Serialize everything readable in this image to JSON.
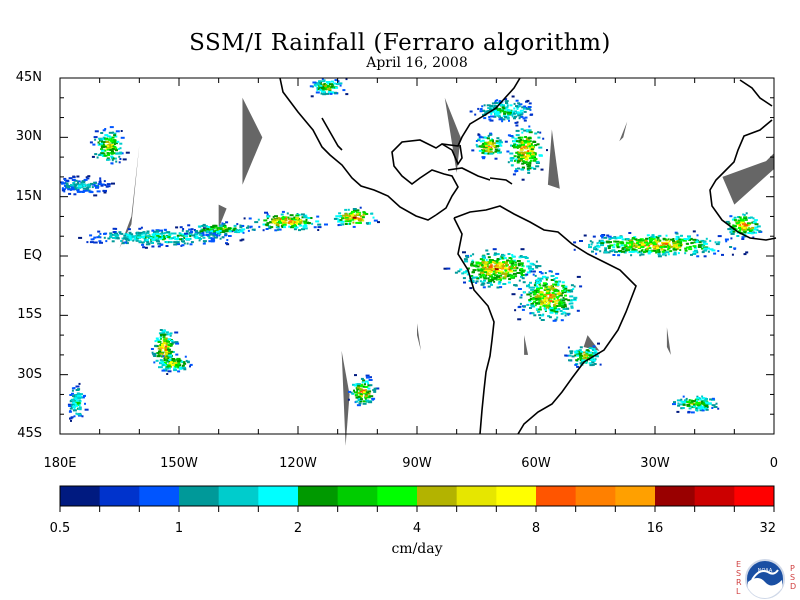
{
  "title": "SSM/I Rainfall (Ferraro algorithm)",
  "subtitle": "April 16, 2008",
  "map": {
    "projection": "cylindrical equidistant",
    "lon_range": [
      -180,
      0
    ],
    "lat_range": [
      -45,
      45
    ],
    "missing_data_color": "#666666",
    "coastline_color": "#000000"
  },
  "lat_ticks": [
    {
      "label": "45N",
      "value": 45
    },
    {
      "label": "30N",
      "value": 30
    },
    {
      "label": "15N",
      "value": 15
    },
    {
      "label": "EQ",
      "value": 0
    },
    {
      "label": "15S",
      "value": -15
    },
    {
      "label": "30S",
      "value": -30
    },
    {
      "label": "45S",
      "value": -45
    }
  ],
  "lon_ticks": [
    {
      "label": "180E",
      "value": -180
    },
    {
      "label": "150W",
      "value": -150
    },
    {
      "label": "120W",
      "value": -120
    },
    {
      "label": "90W",
      "value": -90
    },
    {
      "label": "60W",
      "value": -60
    },
    {
      "label": "30W",
      "value": -30
    },
    {
      "label": "0",
      "value": 0
    }
  ],
  "colorbar": {
    "unit": "cm/day",
    "labels": [
      "0.5",
      "1",
      "2",
      "4",
      "8",
      "16",
      "32"
    ],
    "colors": [
      "#001a80",
      "#0033cc",
      "#0055ff",
      "#009999",
      "#00cccc",
      "#00ffff",
      "#009900",
      "#00cc00",
      "#00ff00",
      "#b3b300",
      "#e6e600",
      "#ffff00",
      "#ff5500",
      "#ff8000",
      "#ffa000",
      "#990000",
      "#cc0000",
      "#ff0000"
    ]
  },
  "logo": {
    "name": "NOAA",
    "left_letters": "E S R L",
    "right_letters": "P S D"
  },
  "chart_data": {
    "type": "heatmap",
    "title": "SSM/I Rainfall (Ferraro algorithm)",
    "subtitle": "April 16, 2008",
    "xlabel": "",
    "ylabel": "",
    "colorbar_label": "cm/day",
    "xlim": [
      -180,
      0
    ],
    "ylim": [
      -45,
      45
    ],
    "missing_swaths": [
      {
        "lon": [
          -165,
          -162,
          -160,
          -162
        ],
        "lat": [
          2,
          8,
          28,
          10
        ]
      },
      {
        "lon": [
          -134,
          -129,
          -134
        ],
        "lat": [
          40,
          30,
          18
        ]
      },
      {
        "lon": [
          -140,
          -138,
          -140
        ],
        "lat": [
          13,
          12,
          7
        ]
      },
      {
        "lon": [
          -83,
          -79,
          -80
        ],
        "lat": [
          40,
          30,
          21
        ]
      },
      {
        "lon": [
          -56,
          -54,
          -57
        ],
        "lat": [
          32,
          17,
          18
        ]
      },
      {
        "lon": [
          -109,
          -107,
          -108
        ],
        "lat": [
          -24,
          -35,
          -48
        ]
      },
      {
        "lon": [
          -90,
          -89,
          -90
        ],
        "lat": [
          -17,
          -24,
          -20
        ]
      },
      {
        "lon": [
          -27,
          -26,
          -27
        ],
        "lat": [
          -18,
          -25,
          -23
        ]
      },
      {
        "lon": [
          -63,
          -62,
          -63
        ],
        "lat": [
          -20,
          -25,
          -25
        ]
      },
      {
        "lon": [
          -47,
          -44,
          -48
        ],
        "lat": [
          -20,
          -24,
          -23
        ]
      },
      {
        "lon": [
          -37,
          -38,
          -39
        ],
        "lat": [
          34,
          30,
          29
        ]
      },
      {
        "lon": [
          -2,
          0,
          0,
          -10,
          -13
        ],
        "lat": [
          24,
          26,
          22,
          13,
          20
        ]
      }
    ],
    "rain_clusters": [
      {
        "lon": -168,
        "lat": 28,
        "max": 12,
        "spread_lon": 5,
        "spread_lat": 6
      },
      {
        "lon": -175,
        "lat": 18,
        "max": 2,
        "spread_lon": 10,
        "spread_lat": 3
      },
      {
        "lon": -155,
        "lat": 5,
        "max": 4,
        "spread_lon": 25,
        "spread_lat": 3
      },
      {
        "lon": -123,
        "lat": 9,
        "max": 20,
        "spread_lon": 12,
        "spread_lat": 3
      },
      {
        "lon": -106,
        "lat": 10,
        "max": 32,
        "spread_lon": 7,
        "spread_lat": 3
      },
      {
        "lon": -140,
        "lat": 7,
        "max": 8,
        "spread_lon": 12,
        "spread_lat": 2
      },
      {
        "lon": -113,
        "lat": 43,
        "max": 8,
        "spread_lon": 6,
        "spread_lat": 3
      },
      {
        "lon": -72,
        "lat": 28,
        "max": 16,
        "spread_lon": 5,
        "spread_lat": 4
      },
      {
        "lon": -63,
        "lat": 27,
        "max": 20,
        "spread_lon": 6,
        "spread_lat": 8
      },
      {
        "lon": -68,
        "lat": 37,
        "max": 4,
        "spread_lon": 10,
        "spread_lat": 4
      },
      {
        "lon": -70,
        "lat": -3,
        "max": 20,
        "spread_lon": 14,
        "spread_lat": 6
      },
      {
        "lon": -57,
        "lat": -10,
        "max": 16,
        "spread_lon": 10,
        "spread_lat": 8
      },
      {
        "lon": -30,
        "lat": 3,
        "max": 16,
        "spread_lon": 25,
        "spread_lat": 4
      },
      {
        "lon": -8,
        "lat": 8,
        "max": 20,
        "spread_lon": 6,
        "spread_lat": 4
      },
      {
        "lon": -154,
        "lat": -23,
        "max": 16,
        "spread_lon": 4,
        "spread_lat": 7
      },
      {
        "lon": -152,
        "lat": -27,
        "max": 12,
        "spread_lon": 6,
        "spread_lat": 3
      },
      {
        "lon": -104,
        "lat": -34,
        "max": 16,
        "spread_lon": 4,
        "spread_lat": 5
      },
      {
        "lon": -48,
        "lat": -25,
        "max": 8,
        "spread_lon": 6,
        "spread_lat": 4
      },
      {
        "lon": -20,
        "lat": -37,
        "max": 8,
        "spread_lon": 8,
        "spread_lat": 3
      },
      {
        "lon": -176,
        "lat": -37,
        "max": 4,
        "spread_lon": 3,
        "spread_lat": 6
      }
    ]
  }
}
